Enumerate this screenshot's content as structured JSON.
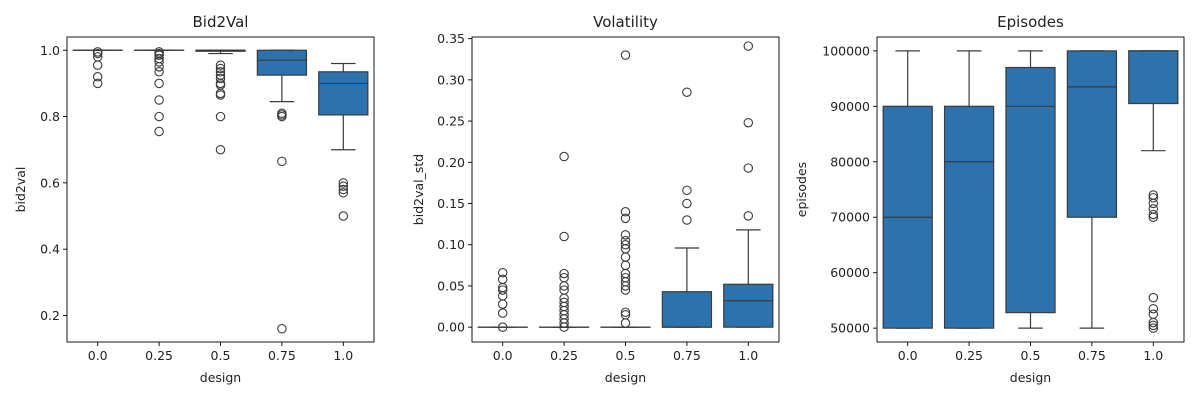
{
  "chart_data": [
    {
      "type": "box",
      "title": "Bid2Val",
      "xlabel": "design",
      "ylabel": "bid2val",
      "categories": [
        "0.0",
        "0.25",
        "0.5",
        "0.75",
        "1.0"
      ],
      "ylim": [
        0.12,
        1.04
      ],
      "yticks": [
        0.2,
        0.4,
        0.6,
        0.8,
        1.0
      ],
      "ytick_labels": [
        "0.2",
        "0.4",
        "0.6",
        "0.8",
        "1.0"
      ],
      "boxes": [
        {
          "whislo": 1.0,
          "q1": 1.0,
          "med": 1.0,
          "q3": 1.0,
          "whishi": 1.0
        },
        {
          "whislo": 1.0,
          "q1": 1.0,
          "med": 1.0,
          "q3": 1.0,
          "whishi": 1.0
        },
        {
          "whislo": 0.99,
          "q1": 0.997,
          "med": 1.0,
          "q3": 1.0,
          "whishi": 1.0
        },
        {
          "whislo": 0.845,
          "q1": 0.925,
          "med": 0.97,
          "q3": 1.0,
          "whishi": 1.0
        },
        {
          "whislo": 0.7,
          "q1": 0.805,
          "med": 0.9,
          "q3": 0.935,
          "whishi": 0.96
        }
      ],
      "fliers": [
        [
          0.9,
          0.92,
          0.955,
          0.98,
          0.99,
          0.995
        ],
        [
          0.755,
          0.8,
          0.85,
          0.9,
          0.935,
          0.95,
          0.965,
          0.975,
          0.985,
          0.99,
          0.995
        ],
        [
          0.7,
          0.8,
          0.865,
          0.87,
          0.895,
          0.9,
          0.915,
          0.925,
          0.935,
          0.945,
          0.955
        ],
        [
          0.16,
          0.665,
          0.8,
          0.805,
          0.81
        ],
        [
          0.5,
          0.57,
          0.58,
          0.59,
          0.6
        ]
      ]
    },
    {
      "type": "box",
      "title": "Volatility",
      "xlabel": "design",
      "ylabel": "bid2val_std",
      "categories": [
        "0.0",
        "0.25",
        "0.5",
        "0.75",
        "1.0"
      ],
      "ylim": [
        -0.018,
        0.352
      ],
      "yticks": [
        0.0,
        0.05,
        0.1,
        0.15,
        0.2,
        0.25,
        0.3,
        0.35
      ],
      "ytick_labels": [
        "0.00",
        "0.05",
        "0.10",
        "0.15",
        "0.20",
        "0.25",
        "0.30",
        "0.35"
      ],
      "boxes": [
        {
          "whislo": 0.0,
          "q1": 0.0,
          "med": 0.0,
          "q3": 0.0,
          "whishi": 0.0
        },
        {
          "whislo": 0.0,
          "q1": 0.0,
          "med": 0.0,
          "q3": 0.0,
          "whishi": 0.0
        },
        {
          "whislo": 0.0,
          "q1": 0.0,
          "med": 0.0,
          "q3": 0.0,
          "whishi": 0.0
        },
        {
          "whislo": 0.0,
          "q1": 0.0,
          "med": 0.0,
          "q3": 0.043,
          "whishi": 0.096
        },
        {
          "whislo": 0.0,
          "q1": 0.0,
          "med": 0.032,
          "q3": 0.052,
          "whishi": 0.118
        }
      ],
      "fliers": [
        [
          0.0,
          0.017,
          0.028,
          0.038,
          0.045,
          0.048,
          0.058,
          0.066
        ],
        [
          0.0,
          0.005,
          0.01,
          0.015,
          0.02,
          0.025,
          0.03,
          0.035,
          0.045,
          0.05,
          0.06,
          0.065,
          0.11,
          0.207
        ],
        [
          0.005,
          0.015,
          0.018,
          0.045,
          0.05,
          0.055,
          0.06,
          0.065,
          0.075,
          0.085,
          0.095,
          0.1,
          0.105,
          0.112,
          0.132,
          0.14,
          0.33
        ],
        [
          0.13,
          0.15,
          0.166,
          0.285
        ],
        [
          0.135,
          0.193,
          0.248,
          0.341
        ]
      ]
    },
    {
      "type": "box",
      "title": "Episodes",
      "xlabel": "design",
      "ylabel": "episodes",
      "categories": [
        "0.0",
        "0.25",
        "0.5",
        "0.75",
        "1.0"
      ],
      "ylim": [
        47500,
        102500
      ],
      "yticks": [
        50000,
        60000,
        70000,
        80000,
        90000,
        100000
      ],
      "ytick_labels": [
        "50000",
        "60000",
        "70000",
        "80000",
        "90000",
        "100000"
      ],
      "boxes": [
        {
          "whislo": 50000,
          "q1": 50000,
          "med": 70000,
          "q3": 90000,
          "whishi": 100000
        },
        {
          "whislo": 50000,
          "q1": 50000,
          "med": 80000,
          "q3": 90000,
          "whishi": 100000
        },
        {
          "whislo": 50000,
          "q1": 52800,
          "med": 90000,
          "q3": 97000,
          "whishi": 100000
        },
        {
          "whislo": 50000,
          "q1": 70000,
          "med": 93500,
          "q3": 100000,
          "whishi": 100000
        },
        {
          "whislo": 82000,
          "q1": 90500,
          "med": 100000,
          "q3": 100000,
          "whishi": 100000
        }
      ],
      "fliers": [
        [],
        [],
        [],
        [],
        [
          50000,
          50500,
          51000,
          52500,
          53500,
          55500,
          70000,
          70500,
          71500,
          72500,
          73500,
          74000
        ]
      ]
    }
  ],
  "colors": {
    "box_fill": "#2d72ad",
    "line": "#3b3b3b",
    "axis": "#000000",
    "flier_edge": "#3b3b3b"
  }
}
